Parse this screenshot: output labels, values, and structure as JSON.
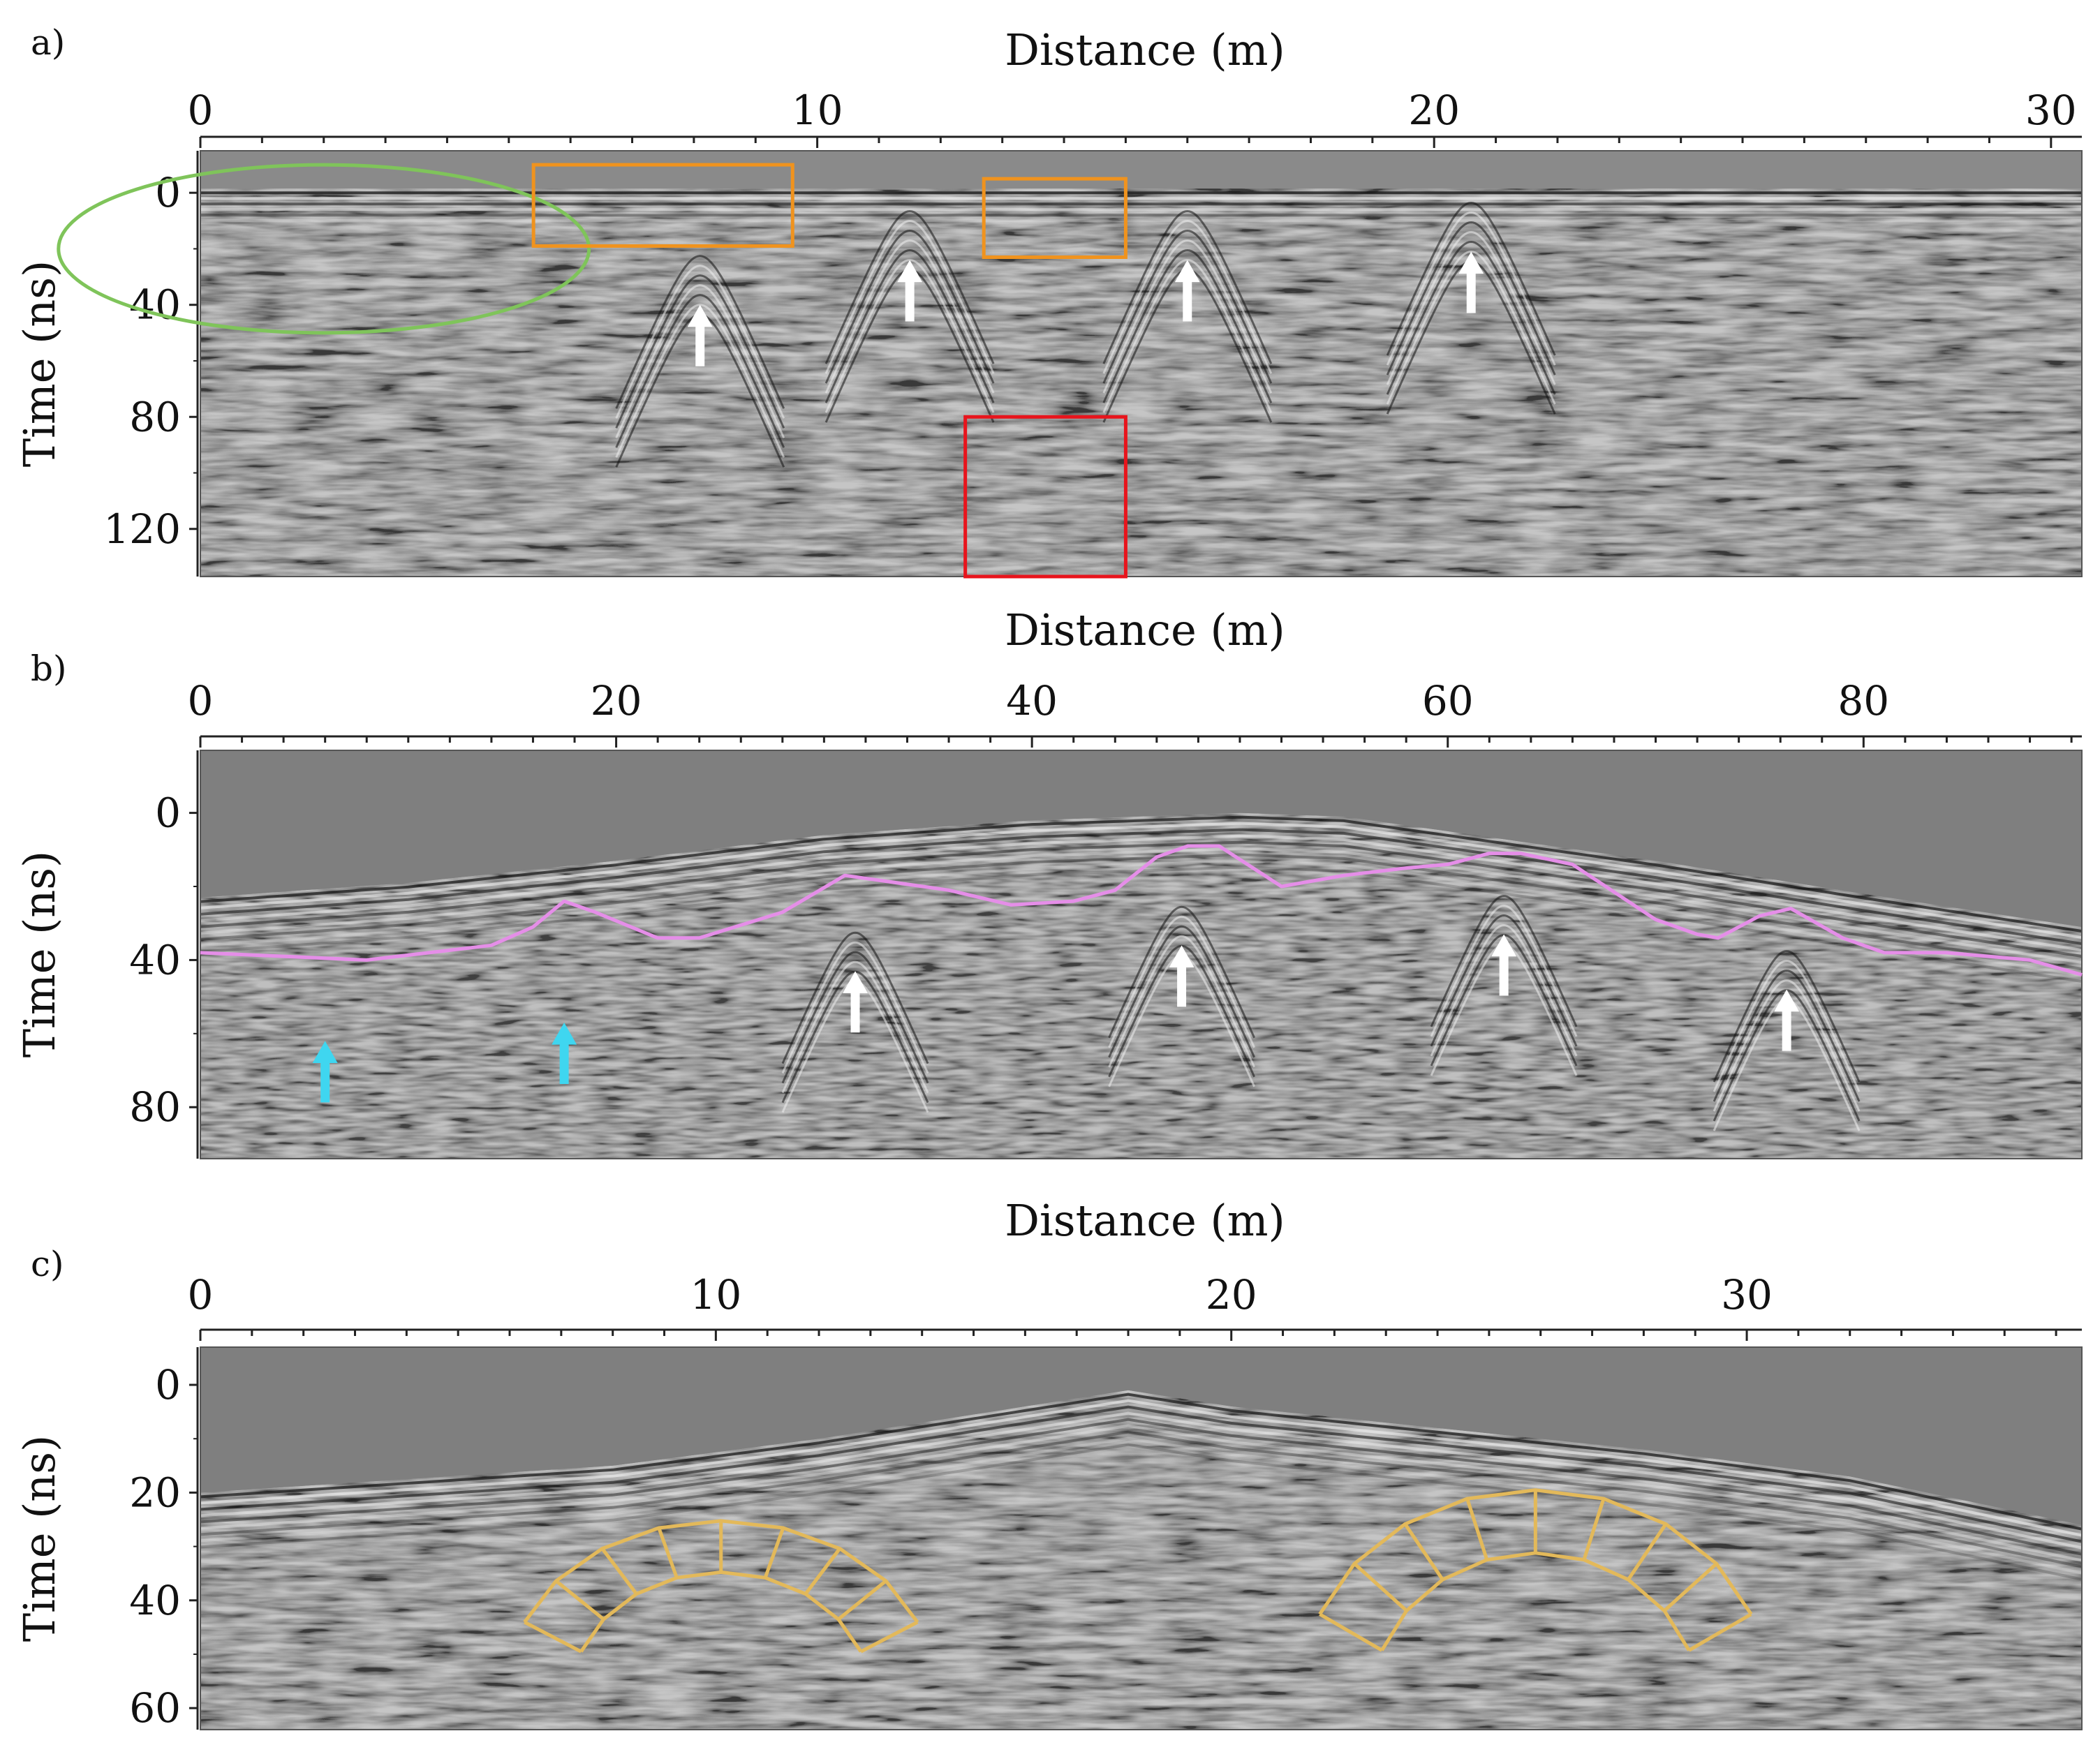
{
  "figure": {
    "panels": [
      {
        "label": "a)",
        "xlabel": "Distance (m)",
        "ylabel": "Time (ns)",
        "xticks": [
          "0",
          "10",
          "20",
          "30"
        ],
        "yticks": [
          "0",
          "40",
          "80",
          "120"
        ]
      },
      {
        "label": "b)",
        "xlabel": "Distance (m)",
        "ylabel": "Time (ns)",
        "xticks": [
          "0",
          "20",
          "40",
          "60",
          "80"
        ],
        "yticks": [
          "0",
          "40",
          "80"
        ]
      },
      {
        "label": "c)",
        "xlabel": "Distance (m)",
        "ylabel": "Time (ns)",
        "xticks": [
          "0",
          "10",
          "20",
          "30"
        ],
        "yticks": [
          "0",
          "20",
          "40",
          "60"
        ]
      }
    ]
  },
  "colors": {
    "radargram_background": "#7f7f7f",
    "reflection_dark": "#111111",
    "reflection_light": "#eeeeee",
    "ellipse": "#7fc45a",
    "orange_box": "#f0931e",
    "red_box": "#e8141c",
    "white_arrow": "#ffffff",
    "cyan_arrow": "#3fd6f0",
    "interface_line": "#e58ee8",
    "arch_outline": "#e3b95a"
  },
  "chart_data": [
    {
      "type": "heatmap",
      "panel": "a",
      "xlabel": "Distance (m)",
      "ylabel": "Time (ns)",
      "xlim": [
        0,
        30.5
      ],
      "ylim": [
        -15,
        137
      ],
      "xticks": [
        0,
        10,
        20,
        30
      ],
      "yticks": [
        0,
        40,
        80,
        120
      ],
      "hyperbola_apex_arrows": [
        {
          "x": 8.1,
          "t": 40
        },
        {
          "x": 11.5,
          "t": 24
        },
        {
          "x": 16.0,
          "t": 24
        },
        {
          "x": 20.6,
          "t": 21
        }
      ],
      "annotations": [
        {
          "shape": "ellipse",
          "color": "green",
          "center": [
            2.0,
            20
          ],
          "radii": [
            4.3,
            30
          ]
        },
        {
          "shape": "rectangle",
          "color": "orange",
          "x": [
            5.4,
            9.6
          ],
          "t": [
            -10,
            19
          ]
        },
        {
          "shape": "rectangle",
          "color": "orange",
          "x": [
            12.7,
            15.0
          ],
          "t": [
            -5,
            23
          ]
        },
        {
          "shape": "rectangle",
          "color": "red",
          "x": [
            12.4,
            15.0
          ],
          "t": [
            80,
            137
          ]
        }
      ]
    },
    {
      "type": "heatmap",
      "panel": "b",
      "xlabel": "Distance (m)",
      "ylabel": "Time (ns)",
      "xlim": [
        0,
        90.5
      ],
      "ylim": [
        -17,
        94
      ],
      "xticks": [
        0,
        20,
        40,
        60,
        80
      ],
      "yticks": [
        0,
        40,
        80
      ],
      "surface_top": {
        "x": [
          0,
          10,
          20,
          30,
          40,
          50,
          55,
          60,
          70,
          80,
          90.5
        ],
        "t": [
          23,
          19,
          13,
          6,
          2,
          0,
          1,
          5,
          13,
          22,
          31
        ]
      },
      "interpreted_interface": {
        "color": "pink",
        "x": [
          0,
          8,
          14,
          16,
          17.5,
          19,
          22,
          24,
          28,
          31,
          36,
          39,
          42,
          44,
          46,
          47.5,
          49,
          52,
          55,
          58,
          60,
          62,
          63.5,
          66,
          70,
          72,
          73,
          75,
          76.5,
          79,
          81,
          84,
          88,
          90.5
        ],
        "t": [
          38,
          40,
          36,
          31,
          24,
          27,
          34,
          34,
          27,
          17,
          21,
          25,
          24,
          21,
          12,
          9,
          9,
          20,
          17,
          15,
          14,
          11,
          11,
          14,
          29,
          33,
          34,
          28,
          26,
          34,
          38,
          38,
          40,
          44
        ]
      },
      "white_arrows": [
        {
          "x": 31.5,
          "t": 43
        },
        {
          "x": 47.2,
          "t": 36
        },
        {
          "x": 62.7,
          "t": 33
        },
        {
          "x": 76.3,
          "t": 48
        }
      ],
      "cyan_arrows": [
        {
          "x": 6.0,
          "t": 62
        },
        {
          "x": 17.5,
          "t": 57
        }
      ]
    },
    {
      "type": "heatmap",
      "panel": "c",
      "xlabel": "Distance (m)",
      "ylabel": "Time (ns)",
      "xlim": [
        0,
        36.5
      ],
      "ylim": [
        -7,
        64
      ],
      "xticks": [
        0,
        10,
        20,
        30
      ],
      "yticks": [
        0,
        20,
        40,
        60
      ],
      "surface_top": {
        "x": [
          0,
          8,
          12,
          16,
          18,
          20,
          24,
          28,
          32,
          36.5
        ],
        "t": [
          20,
          15,
          10,
          4,
          1,
          4,
          8,
          12,
          17,
          26
        ]
      },
      "arch_outlines": [
        {
          "side": "left",
          "x_range": [
            6.0,
            14.2
          ],
          "t_range": [
            24,
            55
          ]
        },
        {
          "side": "right",
          "x_range": [
            21.4,
            30.4
          ],
          "t_range": [
            18,
            56
          ]
        }
      ]
    }
  ]
}
